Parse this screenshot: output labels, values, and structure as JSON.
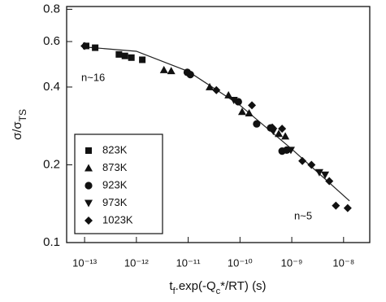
{
  "chart_data": {
    "type": "scatter",
    "y_label_parts": [
      "σ/σ",
      "TS"
    ],
    "x_label_parts": [
      "t",
      "f",
      ".exp(-Q",
      "c",
      "*/RT) (s)"
    ],
    "log_x": true,
    "log_y": true,
    "xlim": [
      4.5e-14,
      3.2e-08
    ],
    "ylim": [
      0.1,
      0.82
    ],
    "xticks": [
      {
        "value": 1e-13,
        "label": "10⁻¹³"
      },
      {
        "value": 1e-12,
        "label": "10⁻¹²"
      },
      {
        "value": 1e-11,
        "label": "10⁻¹¹"
      },
      {
        "value": 1e-10,
        "label": "10⁻¹⁰"
      },
      {
        "value": 1e-09,
        "label": "10⁻⁹"
      },
      {
        "value": 1e-08,
        "label": "10⁻⁸"
      }
    ],
    "yticks": [
      0.1,
      0.2,
      0.4,
      0.6,
      0.8
    ],
    "legend": "lower left",
    "annotations": [
      "n~16",
      "n~5"
    ],
    "series": [
      {
        "name": "823K",
        "marker": "square",
        "color": "#111",
        "x": [
          1.07e-13,
          1.6e-13,
          4.6e-13,
          6e-13,
          8e-13,
          1.3e-12
        ],
        "values": [
          0.577,
          0.568,
          0.535,
          0.528,
          0.52,
          0.51
        ]
      },
      {
        "name": "873K",
        "marker": "triangle",
        "color": "#111",
        "x": [
          3.4e-12,
          4.7e-12,
          2.6e-11,
          6e-11,
          1.1e-10,
          1.5e-10,
          5.6e-10,
          7.5e-10
        ],
        "values": [
          0.466,
          0.462,
          0.4,
          0.372,
          0.321,
          0.317,
          0.264,
          0.258
        ]
      },
      {
        "name": "923K",
        "marker": "circle",
        "color": "#111",
        "x": [
          9.6e-12,
          1.1e-11,
          9.3e-11,
          2.1e-10,
          3.9e-10,
          6.5e-10,
          8e-10
        ],
        "values": [
          0.456,
          0.447,
          0.351,
          0.288,
          0.278,
          0.226,
          0.228
        ]
      },
      {
        "name": "973K",
        "marker": "triangle-down",
        "color": "#111",
        "x": [
          7.6e-11,
          4.4e-10,
          9.6e-10,
          3.4e-09,
          4.4e-09
        ],
        "values": [
          0.356,
          0.27,
          0.228,
          0.187,
          0.183
        ]
      },
      {
        "name": "1023K",
        "marker": "diamond",
        "color": "#111",
        "x": [
          1e-13,
          3.5e-11,
          1.7e-10,
          4.2e-10,
          6.5e-10,
          1.6e-09,
          2.4e-09,
          5.3e-09,
          7.1e-09,
          1.2e-08
        ],
        "values": [
          0.577,
          0.389,
          0.34,
          0.279,
          0.276,
          0.207,
          0.2,
          0.173,
          0.139,
          0.136
        ]
      }
    ],
    "fit_line": {
      "color": "#222",
      "x": [
        1.2e-13,
        1e-12,
        1e-11,
        1e-10,
        1e-09,
        1.3e-08
      ],
      "values": [
        0.57,
        0.55,
        0.46,
        0.34,
        0.23,
        0.145
      ]
    }
  }
}
